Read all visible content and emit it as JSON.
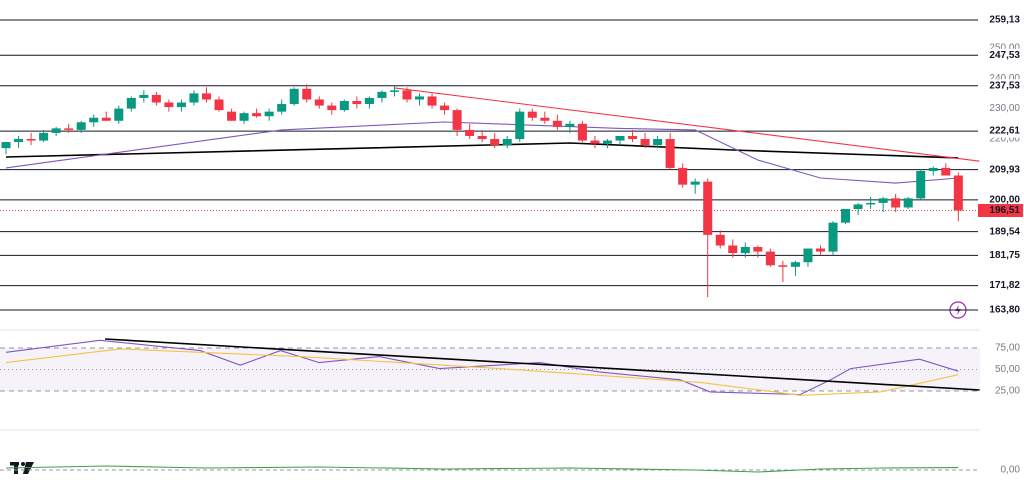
{
  "chart_data": [
    {
      "type": "candlestick",
      "ylim": [
        157.88,
        265.7
      ],
      "xlim": [
        -0.48,
        77.73
      ],
      "up_color": "#089981",
      "down_color": "#f23645",
      "yticks": [
        {
          "value": 250,
          "label": "250,00"
        },
        {
          "value": 240,
          "label": "240,00"
        },
        {
          "value": 230,
          "label": "230,00"
        },
        {
          "value": 220,
          "label": "220,00"
        }
      ],
      "levels": [
        {
          "value": 259.13,
          "label": "259,13"
        },
        {
          "value": 247.53,
          "label": "247,53"
        },
        {
          "value": 237.53,
          "label": "237,53"
        },
        {
          "value": 222.61,
          "label": "222,61"
        },
        {
          "value": 209.93,
          "label": "209,93"
        },
        {
          "value": 200,
          "label": "200,00"
        },
        {
          "value": 189.54,
          "label": "189,54"
        },
        {
          "value": 181.75,
          "label": "181,75"
        },
        {
          "value": 171.82,
          "label": "171,82"
        },
        {
          "value": 163.8,
          "label": "163,80"
        }
      ],
      "last_price": {
        "value": 196.51,
        "label": "196,51"
      },
      "ohlc": [
        [
          217,
          219,
          215,
          219
        ],
        [
          219,
          221,
          217,
          220
        ],
        [
          220,
          222,
          218,
          219.5
        ],
        [
          219.5,
          223,
          219,
          222
        ],
        [
          222,
          224,
          221,
          223.5
        ],
        [
          223.5,
          225,
          222,
          223
        ],
        [
          223,
          226,
          222,
          225.5
        ],
        [
          225.5,
          228,
          224,
          227
        ],
        [
          227,
          229,
          226,
          226
        ],
        [
          226,
          231,
          225,
          230
        ],
        [
          230,
          234,
          229,
          233.5
        ],
        [
          233.5,
          236,
          232,
          234.5
        ],
        [
          234.5,
          235.5,
          231,
          232
        ],
        [
          232,
          233,
          229,
          230.5
        ],
        [
          230.5,
          233,
          229,
          232
        ],
        [
          232,
          236,
          231,
          235
        ],
        [
          235,
          237,
          232,
          233
        ],
        [
          233,
          234,
          229,
          229.5
        ],
        [
          229,
          230,
          226,
          226
        ],
        [
          226,
          229,
          225,
          228.5
        ],
        [
          228.5,
          230,
          227,
          227.5
        ],
        [
          227.5,
          230,
          226,
          229
        ],
        [
          229,
          233,
          228,
          231.5
        ],
        [
          231.5,
          237,
          231,
          236.5
        ],
        [
          236.5,
          238,
          232,
          233
        ],
        [
          233,
          234,
          230,
          231
        ],
        [
          231,
          232,
          228,
          229.5
        ],
        [
          229.5,
          233,
          229,
          232.5
        ],
        [
          232.5,
          234,
          230,
          231.5
        ],
        [
          231.5,
          234,
          230,
          233.5
        ],
        [
          233.5,
          236,
          232,
          235.5
        ],
        [
          235.5,
          237.5,
          234,
          236
        ],
        [
          236,
          237,
          232,
          233
        ],
        [
          233,
          235,
          231,
          234
        ],
        [
          234,
          235,
          230,
          231
        ],
        [
          231,
          232,
          228,
          229.5
        ],
        [
          229.5,
          230,
          221,
          223
        ],
        [
          223,
          225,
          220,
          221
        ],
        [
          221,
          223,
          219,
          220
        ],
        [
          220,
          222,
          217,
          218
        ],
        [
          218,
          221,
          217,
          220
        ],
        [
          220,
          230,
          219,
          229
        ],
        [
          229,
          230,
          226,
          227
        ],
        [
          227,
          229,
          225,
          226
        ],
        [
          226,
          228,
          223,
          224
        ],
        [
          224,
          226,
          222,
          225
        ],
        [
          225,
          226,
          219,
          219.5
        ],
        [
          219.5,
          221,
          217,
          218.5
        ],
        [
          218.5,
          220,
          217,
          219.5
        ],
        [
          219.5,
          221,
          218,
          221
        ],
        [
          221,
          223,
          219,
          220
        ],
        [
          220,
          222,
          217,
          218
        ],
        [
          218,
          221,
          217,
          220
        ],
        [
          220,
          222,
          210,
          210.5
        ],
        [
          210.5,
          212,
          204,
          205
        ],
        [
          205,
          207,
          202,
          206
        ],
        [
          206,
          207,
          168,
          188.5
        ],
        [
          188.5,
          190,
          184,
          185
        ],
        [
          185,
          187,
          181,
          182.5
        ],
        [
          182.5,
          186,
          181,
          184.5
        ],
        [
          184.5,
          185,
          181,
          183
        ],
        [
          183,
          184,
          178,
          178.5
        ],
        [
          178.5,
          180,
          173,
          178
        ],
        [
          178,
          180,
          175,
          179.5
        ],
        [
          179.5,
          184,
          178,
          184
        ],
        [
          184,
          185,
          182,
          183
        ],
        [
          183,
          193,
          182,
          192.5
        ],
        [
          192.5,
          197,
          192,
          197
        ],
        [
          197,
          199,
          195,
          198.5
        ],
        [
          198.5,
          201,
          197,
          199
        ],
        [
          199,
          201,
          196,
          200.5
        ],
        [
          200.5,
          202,
          196,
          197.5
        ],
        [
          197.5,
          201,
          197,
          200.5
        ],
        [
          200.5,
          210,
          200,
          209.5
        ],
        [
          209.5,
          211,
          208,
          210.5
        ],
        [
          210.5,
          212,
          208,
          208
        ],
        [
          208,
          209,
          193,
          196.51
        ]
      ],
      "series": [
        {
          "color": "#000000",
          "x": [
            0,
            45,
            58,
            76
          ],
          "values": [
            214.1,
            218.7,
            216.4,
            213.8
          ]
        },
        {
          "color": "#7e57c2",
          "x": [
            0,
            22,
            35,
            49,
            55,
            60,
            65,
            71,
            76
          ],
          "values": [
            210.5,
            223,
            225.6,
            223.5,
            223,
            213.1,
            207.2,
            205.5,
            207.2
          ]
        },
        {
          "color": "#f23645",
          "x": [
            31,
            77.7
          ],
          "values": [
            236.8,
            212.7
          ]
        }
      ]
    },
    {
      "type": "line",
      "ylim": [
        -8.7,
        93.6
      ],
      "xlim": [
        -0.48,
        77.73
      ],
      "yticks": [
        {
          "value": 75,
          "label": "75,00"
        },
        {
          "value": 50,
          "label": "50,00"
        },
        {
          "value": 25,
          "label": "25,00"
        }
      ],
      "series": [
        {
          "color": "#7e57c2",
          "x": [
            0,
            7.5,
            15.5,
            18.7,
            21.9,
            25,
            29.8,
            34.6,
            42.6,
            47.4,
            53.8,
            56.2,
            63.4,
            65.8,
            67.4,
            72.9,
            76
          ],
          "values": [
            70,
            84,
            72,
            55,
            72,
            58,
            65,
            51,
            58,
            47,
            38,
            24,
            21,
            38,
            51,
            62,
            48
          ]
        },
        {
          "color": "#f5c342",
          "x": [
            0,
            9.1,
            23.5,
            39.4,
            55.4,
            63.4,
            69.8,
            76
          ],
          "values": [
            58,
            74,
            65,
            51,
            35,
            20,
            24,
            44
          ]
        },
        {
          "color": "#000000",
          "x": [
            7.9,
            77.7
          ],
          "values": [
            85.5,
            26.2
          ]
        }
      ]
    },
    {
      "type": "line",
      "ylim": [
        -1,
        1.5
      ],
      "xlim": [
        -0.48,
        77.73
      ],
      "yticks": [
        {
          "value": 0,
          "label": "0,00"
        }
      ],
      "series": [
        {
          "color": "#43a047",
          "x": [
            0,
            8,
            16,
            25,
            35,
            45,
            55,
            60,
            65,
            70,
            76
          ],
          "values": [
            0.1,
            0.2,
            0.1,
            0.15,
            0.05,
            0.1,
            0,
            -0.1,
            0.05,
            0.1,
            0.12
          ]
        }
      ]
    }
  ]
}
